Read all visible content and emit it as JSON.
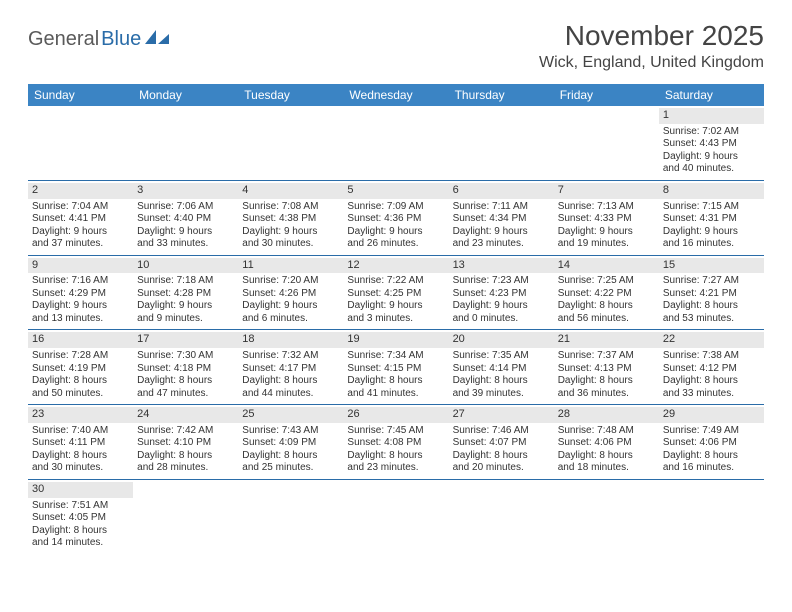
{
  "logo": {
    "text1": "General",
    "text2": "Blue"
  },
  "title": "November 2025",
  "location": "Wick, England, United Kingdom",
  "colors": {
    "header_bg": "#3b84c4",
    "header_text": "#ffffff",
    "day_strip": "#e8e8e8",
    "row_border": "#2a6ca8",
    "logo_gray": "#5a5a5a",
    "logo_blue": "#2a6ca8",
    "text": "#333333"
  },
  "day_headers": [
    "Sunday",
    "Monday",
    "Tuesday",
    "Wednesday",
    "Thursday",
    "Friday",
    "Saturday"
  ],
  "weeks": [
    [
      null,
      null,
      null,
      null,
      null,
      null,
      {
        "n": "1",
        "sr": "Sunrise: 7:02 AM",
        "ss": "Sunset: 4:43 PM",
        "d1": "Daylight: 9 hours",
        "d2": "and 40 minutes."
      }
    ],
    [
      {
        "n": "2",
        "sr": "Sunrise: 7:04 AM",
        "ss": "Sunset: 4:41 PM",
        "d1": "Daylight: 9 hours",
        "d2": "and 37 minutes."
      },
      {
        "n": "3",
        "sr": "Sunrise: 7:06 AM",
        "ss": "Sunset: 4:40 PM",
        "d1": "Daylight: 9 hours",
        "d2": "and 33 minutes."
      },
      {
        "n": "4",
        "sr": "Sunrise: 7:08 AM",
        "ss": "Sunset: 4:38 PM",
        "d1": "Daylight: 9 hours",
        "d2": "and 30 minutes."
      },
      {
        "n": "5",
        "sr": "Sunrise: 7:09 AM",
        "ss": "Sunset: 4:36 PM",
        "d1": "Daylight: 9 hours",
        "d2": "and 26 minutes."
      },
      {
        "n": "6",
        "sr": "Sunrise: 7:11 AM",
        "ss": "Sunset: 4:34 PM",
        "d1": "Daylight: 9 hours",
        "d2": "and 23 minutes."
      },
      {
        "n": "7",
        "sr": "Sunrise: 7:13 AM",
        "ss": "Sunset: 4:33 PM",
        "d1": "Daylight: 9 hours",
        "d2": "and 19 minutes."
      },
      {
        "n": "8",
        "sr": "Sunrise: 7:15 AM",
        "ss": "Sunset: 4:31 PM",
        "d1": "Daylight: 9 hours",
        "d2": "and 16 minutes."
      }
    ],
    [
      {
        "n": "9",
        "sr": "Sunrise: 7:16 AM",
        "ss": "Sunset: 4:29 PM",
        "d1": "Daylight: 9 hours",
        "d2": "and 13 minutes."
      },
      {
        "n": "10",
        "sr": "Sunrise: 7:18 AM",
        "ss": "Sunset: 4:28 PM",
        "d1": "Daylight: 9 hours",
        "d2": "and 9 minutes."
      },
      {
        "n": "11",
        "sr": "Sunrise: 7:20 AM",
        "ss": "Sunset: 4:26 PM",
        "d1": "Daylight: 9 hours",
        "d2": "and 6 minutes."
      },
      {
        "n": "12",
        "sr": "Sunrise: 7:22 AM",
        "ss": "Sunset: 4:25 PM",
        "d1": "Daylight: 9 hours",
        "d2": "and 3 minutes."
      },
      {
        "n": "13",
        "sr": "Sunrise: 7:23 AM",
        "ss": "Sunset: 4:23 PM",
        "d1": "Daylight: 9 hours",
        "d2": "and 0 minutes."
      },
      {
        "n": "14",
        "sr": "Sunrise: 7:25 AM",
        "ss": "Sunset: 4:22 PM",
        "d1": "Daylight: 8 hours",
        "d2": "and 56 minutes."
      },
      {
        "n": "15",
        "sr": "Sunrise: 7:27 AM",
        "ss": "Sunset: 4:21 PM",
        "d1": "Daylight: 8 hours",
        "d2": "and 53 minutes."
      }
    ],
    [
      {
        "n": "16",
        "sr": "Sunrise: 7:28 AM",
        "ss": "Sunset: 4:19 PM",
        "d1": "Daylight: 8 hours",
        "d2": "and 50 minutes."
      },
      {
        "n": "17",
        "sr": "Sunrise: 7:30 AM",
        "ss": "Sunset: 4:18 PM",
        "d1": "Daylight: 8 hours",
        "d2": "and 47 minutes."
      },
      {
        "n": "18",
        "sr": "Sunrise: 7:32 AM",
        "ss": "Sunset: 4:17 PM",
        "d1": "Daylight: 8 hours",
        "d2": "and 44 minutes."
      },
      {
        "n": "19",
        "sr": "Sunrise: 7:34 AM",
        "ss": "Sunset: 4:15 PM",
        "d1": "Daylight: 8 hours",
        "d2": "and 41 minutes."
      },
      {
        "n": "20",
        "sr": "Sunrise: 7:35 AM",
        "ss": "Sunset: 4:14 PM",
        "d1": "Daylight: 8 hours",
        "d2": "and 39 minutes."
      },
      {
        "n": "21",
        "sr": "Sunrise: 7:37 AM",
        "ss": "Sunset: 4:13 PM",
        "d1": "Daylight: 8 hours",
        "d2": "and 36 minutes."
      },
      {
        "n": "22",
        "sr": "Sunrise: 7:38 AM",
        "ss": "Sunset: 4:12 PM",
        "d1": "Daylight: 8 hours",
        "d2": "and 33 minutes."
      }
    ],
    [
      {
        "n": "23",
        "sr": "Sunrise: 7:40 AM",
        "ss": "Sunset: 4:11 PM",
        "d1": "Daylight: 8 hours",
        "d2": "and 30 minutes."
      },
      {
        "n": "24",
        "sr": "Sunrise: 7:42 AM",
        "ss": "Sunset: 4:10 PM",
        "d1": "Daylight: 8 hours",
        "d2": "and 28 minutes."
      },
      {
        "n": "25",
        "sr": "Sunrise: 7:43 AM",
        "ss": "Sunset: 4:09 PM",
        "d1": "Daylight: 8 hours",
        "d2": "and 25 minutes."
      },
      {
        "n": "26",
        "sr": "Sunrise: 7:45 AM",
        "ss": "Sunset: 4:08 PM",
        "d1": "Daylight: 8 hours",
        "d2": "and 23 minutes."
      },
      {
        "n": "27",
        "sr": "Sunrise: 7:46 AM",
        "ss": "Sunset: 4:07 PM",
        "d1": "Daylight: 8 hours",
        "d2": "and 20 minutes."
      },
      {
        "n": "28",
        "sr": "Sunrise: 7:48 AM",
        "ss": "Sunset: 4:06 PM",
        "d1": "Daylight: 8 hours",
        "d2": "and 18 minutes."
      },
      {
        "n": "29",
        "sr": "Sunrise: 7:49 AM",
        "ss": "Sunset: 4:06 PM",
        "d1": "Daylight: 8 hours",
        "d2": "and 16 minutes."
      }
    ],
    [
      {
        "n": "30",
        "sr": "Sunrise: 7:51 AM",
        "ss": "Sunset: 4:05 PM",
        "d1": "Daylight: 8 hours",
        "d2": "and 14 minutes."
      },
      null,
      null,
      null,
      null,
      null,
      null
    ]
  ]
}
